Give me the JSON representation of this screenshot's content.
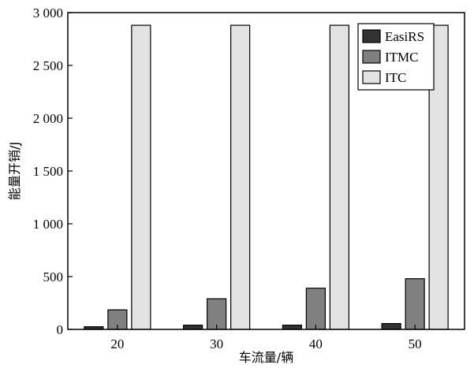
{
  "chart_data": {
    "type": "bar",
    "title": "",
    "xlabel": "车流量/辆",
    "ylabel": "能量开销/J",
    "categories": [
      "20",
      "30",
      "40",
      "50"
    ],
    "ylim": [
      0,
      3000
    ],
    "yticks": [
      0,
      500,
      1000,
      1500,
      2000,
      2500,
      3000
    ],
    "ytick_labels": [
      "0",
      "500",
      "1 000",
      "1 500",
      "2 000",
      "2 500",
      "3 000"
    ],
    "grid": false,
    "legend_position": "top-right",
    "series": [
      {
        "name": "EasiRS",
        "color": "#333333",
        "values": [
          25,
          40,
          40,
          55
        ]
      },
      {
        "name": "ITMC",
        "color": "#808080",
        "values": [
          185,
          290,
          390,
          480
        ]
      },
      {
        "name": "ITC",
        "color": "#e3e3e3",
        "values": [
          2880,
          2880,
          2880,
          2880
        ]
      }
    ]
  }
}
